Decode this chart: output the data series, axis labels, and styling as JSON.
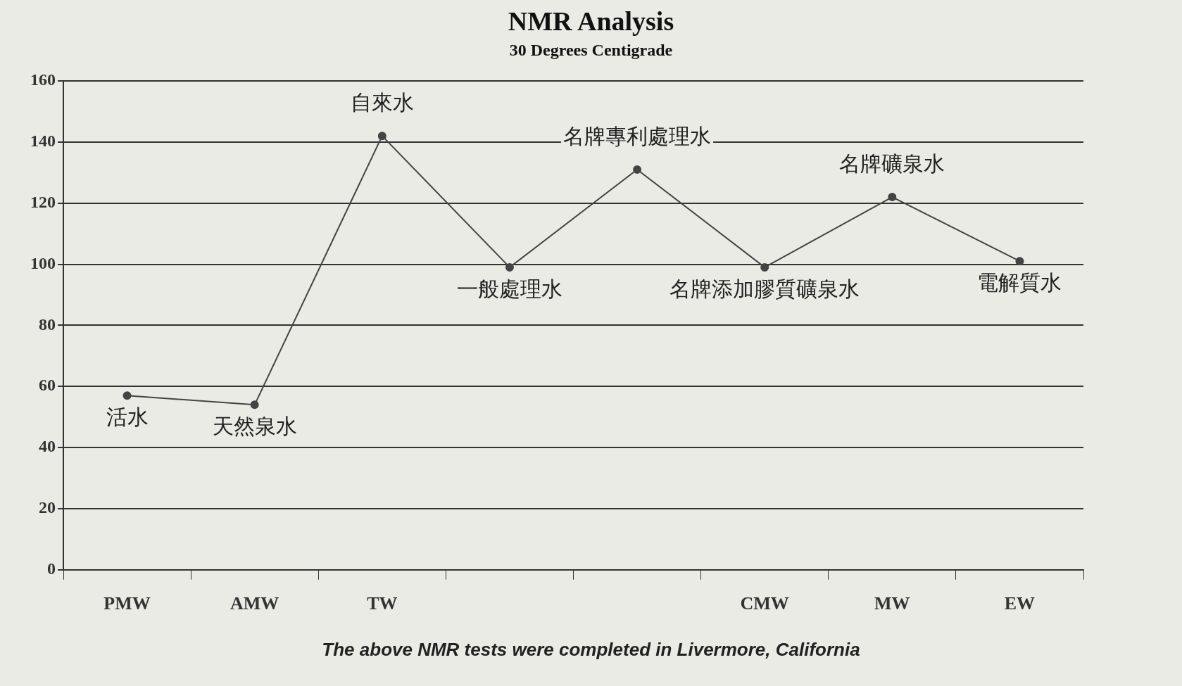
{
  "chart_data": {
    "type": "line",
    "title": "NMR Analysis",
    "subtitle": "30 Degrees Centigrade",
    "categories": [
      "PMW",
      "AMW",
      "TW",
      null,
      null,
      "CMW",
      "MW",
      "EW"
    ],
    "series": [
      {
        "color": "#444444",
        "values": [
          57,
          54,
          142,
          99,
          131,
          99,
          122,
          101
        ]
      }
    ],
    "ylim": [
      0,
      160
    ],
    "yticks": [
      0,
      20,
      40,
      60,
      80,
      100,
      120,
      140,
      160
    ],
    "grid": "y",
    "legend": false,
    "marker": "circle",
    "annotations": [
      "活水",
      "天然泉水",
      "自來水",
      "一般處理水",
      "名牌專利處理水",
      "名牌添加膠質礦泉水",
      "名牌礦泉水",
      "電解質水",
      "The above NMR tests were completed in Livermore, California"
    ]
  }
}
